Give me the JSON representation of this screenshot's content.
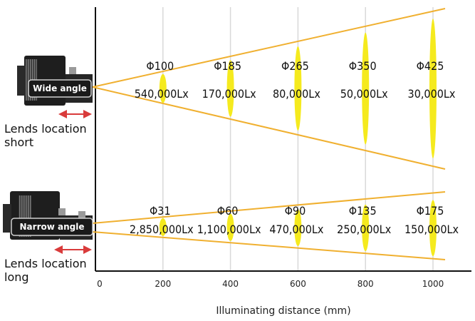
{
  "axis": {
    "label": "Illuminating distance (mm)",
    "ticks": [
      "0",
      "200",
      "400",
      "600",
      "800",
      "1000"
    ]
  },
  "colors": {
    "beam": "#f0b030",
    "spot": "#f5ea1e",
    "arrow": "#d93b3b",
    "grid": "#d8d8d8"
  },
  "wide": {
    "badge": "Wide angle",
    "location": [
      "Lends location",
      "short"
    ],
    "points": [
      {
        "distance": 200,
        "diameter": "Φ100",
        "lux": "540,000Lx"
      },
      {
        "distance": 400,
        "diameter": "Φ185",
        "lux": "170,000Lx"
      },
      {
        "distance": 600,
        "diameter": "Φ265",
        "lux": "80,000Lx"
      },
      {
        "distance": 800,
        "diameter": "Φ350",
        "lux": "50,000Lx"
      },
      {
        "distance": 1000,
        "diameter": "Φ425",
        "lux": "30,000Lx"
      }
    ]
  },
  "narrow": {
    "badge": "Narrow angle",
    "location": [
      "Lends location",
      "long"
    ],
    "points": [
      {
        "distance": 200,
        "diameter": "Φ31",
        "lux": "2,850,000Lx"
      },
      {
        "distance": 400,
        "diameter": "Φ60",
        "lux": "1,100,000Lx"
      },
      {
        "distance": 600,
        "diameter": "Φ90",
        "lux": "470,000Lx"
      },
      {
        "distance": 800,
        "diameter": "Φ135",
        "lux": "250,000Lx"
      },
      {
        "distance": 1000,
        "diameter": "Φ175",
        "lux": "150,000Lx"
      }
    ]
  }
}
